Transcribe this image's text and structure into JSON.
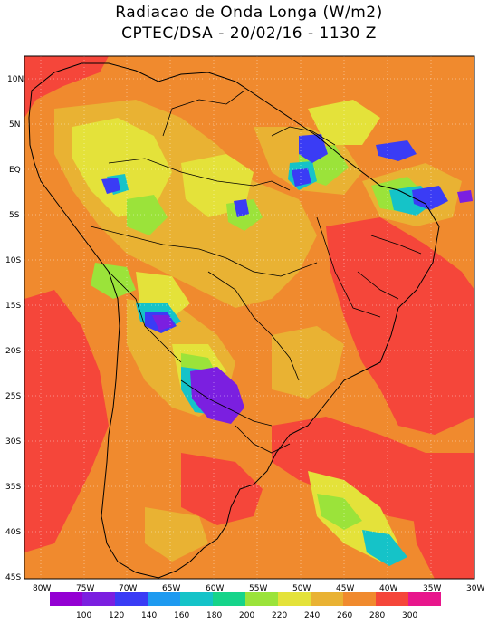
{
  "title": {
    "line1": "Radiacao de Onda Longa (W/m2)",
    "line2": "CPTEC/DSA - 20/02/16 - 1130 Z"
  },
  "latitude_labels": [
    "10N",
    "5N",
    "EQ",
    "5S",
    "10S",
    "15S",
    "20S",
    "25S",
    "30S",
    "35S",
    "40S",
    "45S"
  ],
  "longitude_labels": [
    "80W",
    "75W",
    "70W",
    "65W",
    "60W",
    "55W",
    "50W",
    "45W",
    "40W",
    "35W",
    "30W"
  ],
  "colorbar": {
    "colors": [
      "#9400d3",
      "#7b1fe0",
      "#3a3cf5",
      "#1e9af0",
      "#15c3c8",
      "#16d48a",
      "#9be33a",
      "#e4e23a",
      "#e9b233",
      "#f08a2e",
      "#f5463a",
      "#e8168c"
    ],
    "labels": [
      "100",
      "120",
      "140",
      "160",
      "180",
      "200",
      "220",
      "240",
      "260",
      "280",
      "300"
    ]
  },
  "field_colors": {
    "background": "#f08a2e",
    "warm": "#f5463a",
    "mid": "#e9b233",
    "cool": "#e4e23a",
    "green": "#9be33a",
    "teal": "#15c3c8",
    "blue": "#3a3cf5",
    "purple": "#7b1fe0"
  }
}
